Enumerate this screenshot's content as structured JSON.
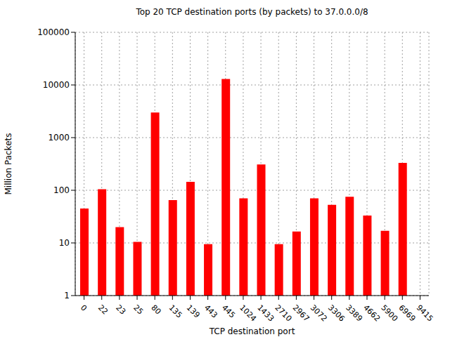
{
  "chart_data": {
    "type": "bar",
    "title": "Top 20 TCP destination ports (by packets) to 37.0.0.0/8",
    "x_label": "TCP destination port",
    "y_label": "Million Packets",
    "categories": [
      "0",
      "22",
      "23",
      "25",
      "80",
      "135",
      "139",
      "443",
      "445",
      "1024",
      "1433",
      "2710",
      "2967",
      "3072",
      "3306",
      "3389",
      "4662",
      "5900",
      "6969",
      "9415"
    ],
    "values": [
      45,
      105,
      20,
      10.5,
      3000,
      65,
      145,
      9.5,
      13000,
      70,
      310,
      9.5,
      16.5,
      70,
      53,
      75,
      33,
      17,
      330,
      null
    ],
    "color": "#ff0000",
    "log": "y",
    "ylim": [
      1,
      100000
    ],
    "yticks": [
      1,
      10,
      100,
      1000,
      10000,
      100000
    ],
    "grid": true
  }
}
